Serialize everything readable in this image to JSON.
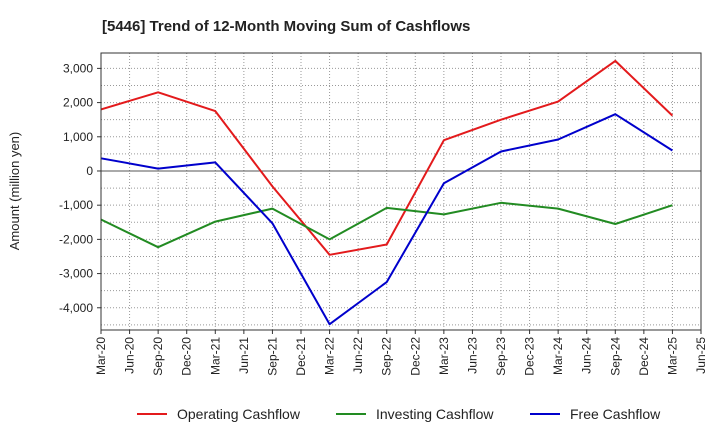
{
  "chart_data": {
    "type": "line",
    "title": "[5446]  Trend of 12-Month Moving Sum of Cashflows",
    "ylabel": "Amount (million yen)",
    "xlabel": "",
    "ylim": [
      -4650,
      3450
    ],
    "yticks": [
      3000,
      2000,
      1000,
      0,
      -1000,
      -2000,
      -3000,
      -4000
    ],
    "ytick_labels": [
      "3,000",
      "2,000",
      "1,000",
      "0",
      "-1,000",
      "-2,000",
      "-3,000",
      "-4,000"
    ],
    "categories": [
      "Mar-20",
      "Jun-20",
      "Sep-20",
      "Dec-20",
      "Mar-21",
      "Jun-21",
      "Sep-21",
      "Dec-21",
      "Mar-22",
      "Jun-22",
      "Sep-22",
      "Dec-22",
      "Mar-23",
      "Jun-23",
      "Sep-23",
      "Dec-23",
      "Mar-24",
      "Jun-24",
      "Sep-24",
      "Dec-24",
      "Mar-25",
      "Jun-25"
    ],
    "grid": true,
    "legend_position": "bottom",
    "series": [
      {
        "name": "Operating Cashflow",
        "color": "#e31a1c",
        "points": [
          {
            "x": "Mar-20",
            "y": 1800
          },
          {
            "x": "Sep-20",
            "y": 2300
          },
          {
            "x": "Mar-21",
            "y": 1750
          },
          {
            "x": "Sep-21",
            "y": -450
          },
          {
            "x": "Mar-22",
            "y": -2450
          },
          {
            "x": "Sep-22",
            "y": -2150
          },
          {
            "x": "Mar-23",
            "y": 900
          },
          {
            "x": "Sep-23",
            "y": 1500
          },
          {
            "x": "Mar-24",
            "y": 2030
          },
          {
            "x": "Sep-24",
            "y": 3220
          },
          {
            "x": "Mar-25",
            "y": 1620
          }
        ]
      },
      {
        "name": "Investing Cashflow",
        "color": "#228b22",
        "points": [
          {
            "x": "Mar-20",
            "y": -1420
          },
          {
            "x": "Sep-20",
            "y": -2230
          },
          {
            "x": "Mar-21",
            "y": -1480
          },
          {
            "x": "Sep-21",
            "y": -1100
          },
          {
            "x": "Mar-22",
            "y": -2000
          },
          {
            "x": "Sep-22",
            "y": -1080
          },
          {
            "x": "Mar-23",
            "y": -1270
          },
          {
            "x": "Sep-23",
            "y": -930
          },
          {
            "x": "Mar-24",
            "y": -1100
          },
          {
            "x": "Sep-24",
            "y": -1550
          },
          {
            "x": "Mar-25",
            "y": -1000
          }
        ]
      },
      {
        "name": "Free Cashflow",
        "color": "#0000cc",
        "points": [
          {
            "x": "Mar-20",
            "y": 370
          },
          {
            "x": "Sep-20",
            "y": 70
          },
          {
            "x": "Mar-21",
            "y": 250
          },
          {
            "x": "Sep-21",
            "y": -1530
          },
          {
            "x": "Mar-22",
            "y": -4480
          },
          {
            "x": "Sep-22",
            "y": -3250
          },
          {
            "x": "Mar-23",
            "y": -360
          },
          {
            "x": "Sep-23",
            "y": 570
          },
          {
            "x": "Mar-24",
            "y": 920
          },
          {
            "x": "Sep-24",
            "y": 1660
          },
          {
            "x": "Mar-25",
            "y": 600
          }
        ]
      }
    ]
  }
}
